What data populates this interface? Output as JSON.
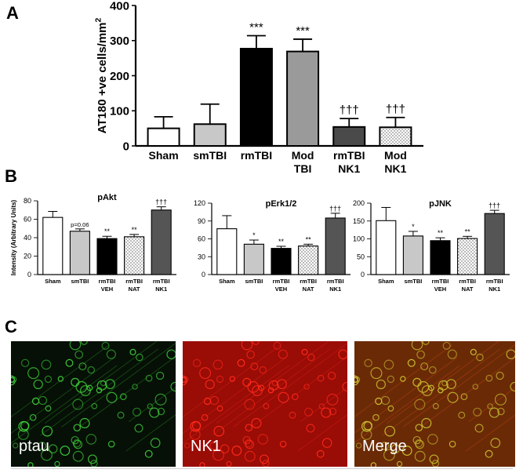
{
  "panel_labels": {
    "a": "A",
    "b": "B",
    "c": "C"
  },
  "chart_data": [
    {
      "type": "bar",
      "panel": "A",
      "ylabel": "AT180 +ve cells/mm",
      "ylabel_sup": "2",
      "ylim": [
        0,
        400
      ],
      "yticks": [
        "0",
        "100",
        "200",
        "300",
        "400"
      ],
      "categories": [
        [
          "Sham"
        ],
        [
          "smTBI"
        ],
        [
          "rmTBI"
        ],
        [
          "Mod",
          "TBI"
        ],
        [
          "rmTBI",
          "NK1"
        ],
        [
          "Mod",
          "NK1"
        ]
      ],
      "values": [
        50,
        62,
        277,
        269,
        54,
        53
      ],
      "errors": [
        33,
        57,
        37,
        35,
        24,
        28
      ],
      "annotations": [
        "",
        "",
        "***",
        "***",
        "†††",
        "†††"
      ],
      "fills": [
        "#ffffff",
        "#c8c8c8",
        "#000000",
        "#9a9a9a",
        "#4a4a4a",
        "dots"
      ]
    },
    {
      "type": "bar",
      "panel": "B",
      "title": "pAkt",
      "ylabel": "Intensity (Arbitrary Units)",
      "ylim": [
        0,
        80
      ],
      "yticks": [
        "0",
        "20",
        "40",
        "60",
        "80"
      ],
      "categories": [
        [
          "Sham"
        ],
        [
          "smTBI"
        ],
        [
          "rmTBI",
          "VEH"
        ],
        [
          "rmTBI",
          "NAT"
        ],
        [
          "rmTBI",
          "NK1"
        ]
      ],
      "values": [
        62,
        47,
        39,
        41,
        70
      ],
      "errors": [
        6.5,
        2.5,
        2.5,
        2.5,
        3.5
      ],
      "annotations": [
        "",
        "p=0.06",
        "**",
        "**",
        "†††"
      ],
      "fills": [
        "#ffffff",
        "#c8c8c8",
        "#000000",
        "dots",
        "#555555"
      ]
    },
    {
      "type": "bar",
      "panel": "B",
      "title": "pErk1/2",
      "ylim": [
        0,
        120
      ],
      "yticks": [
        "0",
        "30",
        "60",
        "90",
        "120"
      ],
      "categories": [
        [
          "Sham"
        ],
        [
          "smTBI"
        ],
        [
          "rmTBI",
          "VEH"
        ],
        [
          "rmTBI",
          "NAT"
        ],
        [
          "rmTBI",
          "NK1"
        ]
      ],
      "values": [
        77,
        51,
        44,
        48,
        95
      ],
      "errors": [
        22,
        7,
        3.5,
        3,
        8
      ],
      "annotations": [
        "",
        "*",
        "**",
        "**",
        "†††"
      ],
      "fills": [
        "#ffffff",
        "#c8c8c8",
        "#000000",
        "dots",
        "#555555"
      ]
    },
    {
      "type": "bar",
      "panel": "B",
      "title": "pJNK",
      "ylim": [
        0,
        200
      ],
      "yticks": [
        "0",
        "50",
        "100",
        "150",
        "200"
      ],
      "categories": [
        [
          "Sham"
        ],
        [
          "smTBI"
        ],
        [
          "rmTBI",
          "VEH"
        ],
        [
          "rmTBI",
          "NAT"
        ],
        [
          "rmTBI",
          "NK1"
        ]
      ],
      "values": [
        151,
        108,
        95,
        101,
        171
      ],
      "errors": [
        37,
        13,
        8,
        6,
        9
      ],
      "annotations": [
        "",
        "*",
        "**",
        "**",
        "†††"
      ],
      "fills": [
        "#ffffff",
        "#c8c8c8",
        "#000000",
        "dots",
        "#555555"
      ]
    }
  ],
  "micrographs": [
    {
      "label": "ptau",
      "colors": {
        "base": "#061006",
        "cell": "#3ec93a",
        "glow": "#1c5a1a"
      }
    },
    {
      "label": "NK1",
      "colors": {
        "base": "#9a0c06",
        "cell": "#ff2a1a",
        "glow": "#c01a10"
      }
    },
    {
      "label": "Merge",
      "colors": {
        "base": "#6a2a06",
        "cell": "#c8c030",
        "glow": "#a03a10"
      }
    }
  ]
}
